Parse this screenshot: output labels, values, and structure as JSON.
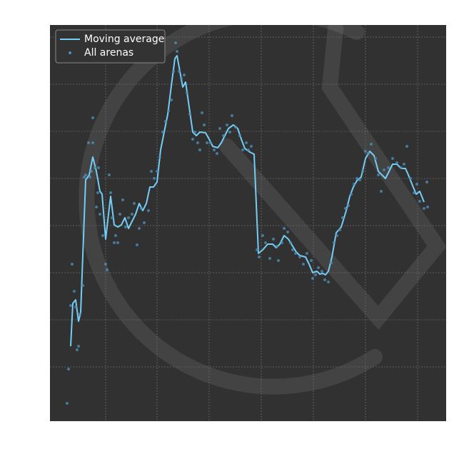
{
  "chart_data": {
    "type": "line",
    "xlim": [
      0,
      555
    ],
    "ylim": [
      0,
      555
    ],
    "xticks": [
      78,
      150,
      223,
      296,
      369,
      442,
      515
    ],
    "yticks": [
      76,
      142,
      208,
      274,
      340,
      406,
      472,
      538
    ],
    "grid": true,
    "tick_labels": false,
    "legend": "upper left",
    "series": [
      {
        "name": "Moving average",
        "type": "line",
        "color": "#74cdf5",
        "x": [
          29,
          32,
          36,
          40,
          43,
          50,
          55,
          60,
          65,
          70,
          73,
          78,
          82,
          85,
          90,
          95,
          100,
          105,
          110,
          115,
          120,
          125,
          130,
          135,
          140,
          145,
          150,
          155,
          160,
          165,
          170,
          175,
          178,
          182,
          186,
          190,
          195,
          200,
          205,
          210,
          218,
          223,
          228,
          235,
          240,
          245,
          250,
          257,
          263,
          268,
          273,
          280,
          286,
          292,
          298,
          305,
          312,
          317,
          322,
          328,
          334,
          340,
          345,
          350,
          358,
          363,
          368,
          374,
          378,
          382,
          386,
          390,
          395,
          401,
          408,
          415,
          420,
          425,
          430,
          436,
          442,
          448,
          454,
          460,
          465,
          470,
          475,
          480,
          486,
          492,
          498,
          502,
          508,
          513,
          518,
          524
        ],
        "values": [
          105,
          165,
          170,
          140,
          152,
          338,
          345,
          370,
          350,
          322,
          318,
          255,
          290,
          315,
          275,
          272,
          275,
          285,
          270,
          280,
          290,
          305,
          295,
          305,
          328,
          328,
          335,
          380,
          405,
          430,
          470,
          508,
          512,
          490,
          468,
          475,
          440,
          405,
          400,
          405,
          404,
          395,
          385,
          383,
          390,
          400,
          410,
          415,
          410,
          395,
          382,
          377,
          374,
          235,
          240,
          248,
          248,
          243,
          248,
          260,
          255,
          245,
          237,
          232,
          230,
          220,
          208,
          210,
          206,
          207,
          205,
          210,
          230,
          264,
          272,
          295,
          315,
          328,
          337,
          342,
          368,
          378,
          372,
          350,
          345,
          340,
          350,
          360,
          360,
          354,
          354,
          345,
          330,
          318,
          322,
          307
        ]
      },
      {
        "name": "All arenas",
        "type": "scatter",
        "color": "#4f8db3",
        "x": [
          24,
          26,
          29,
          31,
          34,
          36,
          38,
          40,
          42,
          46,
          48,
          50,
          54,
          56,
          58,
          60,
          60,
          63,
          67,
          68,
          65,
          70,
          74,
          78,
          80,
          83,
          85,
          87,
          90,
          92,
          95,
          98,
          102,
          106,
          110,
          115,
          118,
          122,
          125,
          128,
          132,
          138,
          142,
          146,
          150,
          154,
          158,
          162,
          166,
          170,
          173,
          176,
          178,
          181,
          184,
          188,
          192,
          196,
          200,
          203,
          207,
          210,
          213,
          216,
          220,
          225,
          230,
          234,
          238,
          243,
          248,
          252,
          255,
          260,
          266,
          270,
          275,
          278,
          282,
          290,
          293,
          298,
          302,
          308,
          313,
          318,
          320,
          325,
          328,
          333,
          337,
          340,
          344,
          350,
          355,
          360,
          366,
          368,
          372,
          376,
          381,
          385,
          390,
          394,
          398,
          402,
          406,
          410,
          414,
          418,
          422,
          426,
          430,
          434,
          438,
          442,
          446,
          450,
          456,
          460,
          464,
          468,
          474,
          480,
          486,
          492,
          496,
          500,
          505,
          510,
          514,
          518,
          524,
          528,
          529
        ],
        "values": [
          25,
          73,
          162,
          220,
          182,
          160,
          100,
          105,
          150,
          190,
          342,
          345,
          390,
          342,
          350,
          390,
          425,
          355,
          320,
          355,
          300,
          290,
          260,
          220,
          212,
          345,
          320,
          285,
          250,
          260,
          250,
          290,
          310,
          272,
          285,
          290,
          305,
          247,
          270,
          298,
          278,
          295,
          350,
          340,
          350,
          370,
          405,
          420,
          435,
          450,
          490,
          530,
          518,
          490,
          480,
          485,
          460,
          430,
          395,
          405,
          390,
          380,
          432,
          415,
          390,
          390,
          380,
          375,
          410,
          400,
          415,
          405,
          428,
          412,
          400,
          380,
          390,
          380,
          385,
          240,
          230,
          260,
          250,
          228,
          255,
          245,
          225,
          250,
          270,
          265,
          250,
          240,
          235,
          230,
          220,
          235,
          225,
          200,
          205,
          215,
          210,
          198,
          195,
          222,
          250,
          260,
          268,
          285,
          298,
          302,
          318,
          332,
          340,
          338,
          350,
          378,
          375,
          388,
          368,
          345,
          322,
          352,
          355,
          368,
          362,
          355,
          360,
          385,
          340,
          320,
          332,
          308,
          298,
          335,
          300
        ]
      }
    ]
  }
}
